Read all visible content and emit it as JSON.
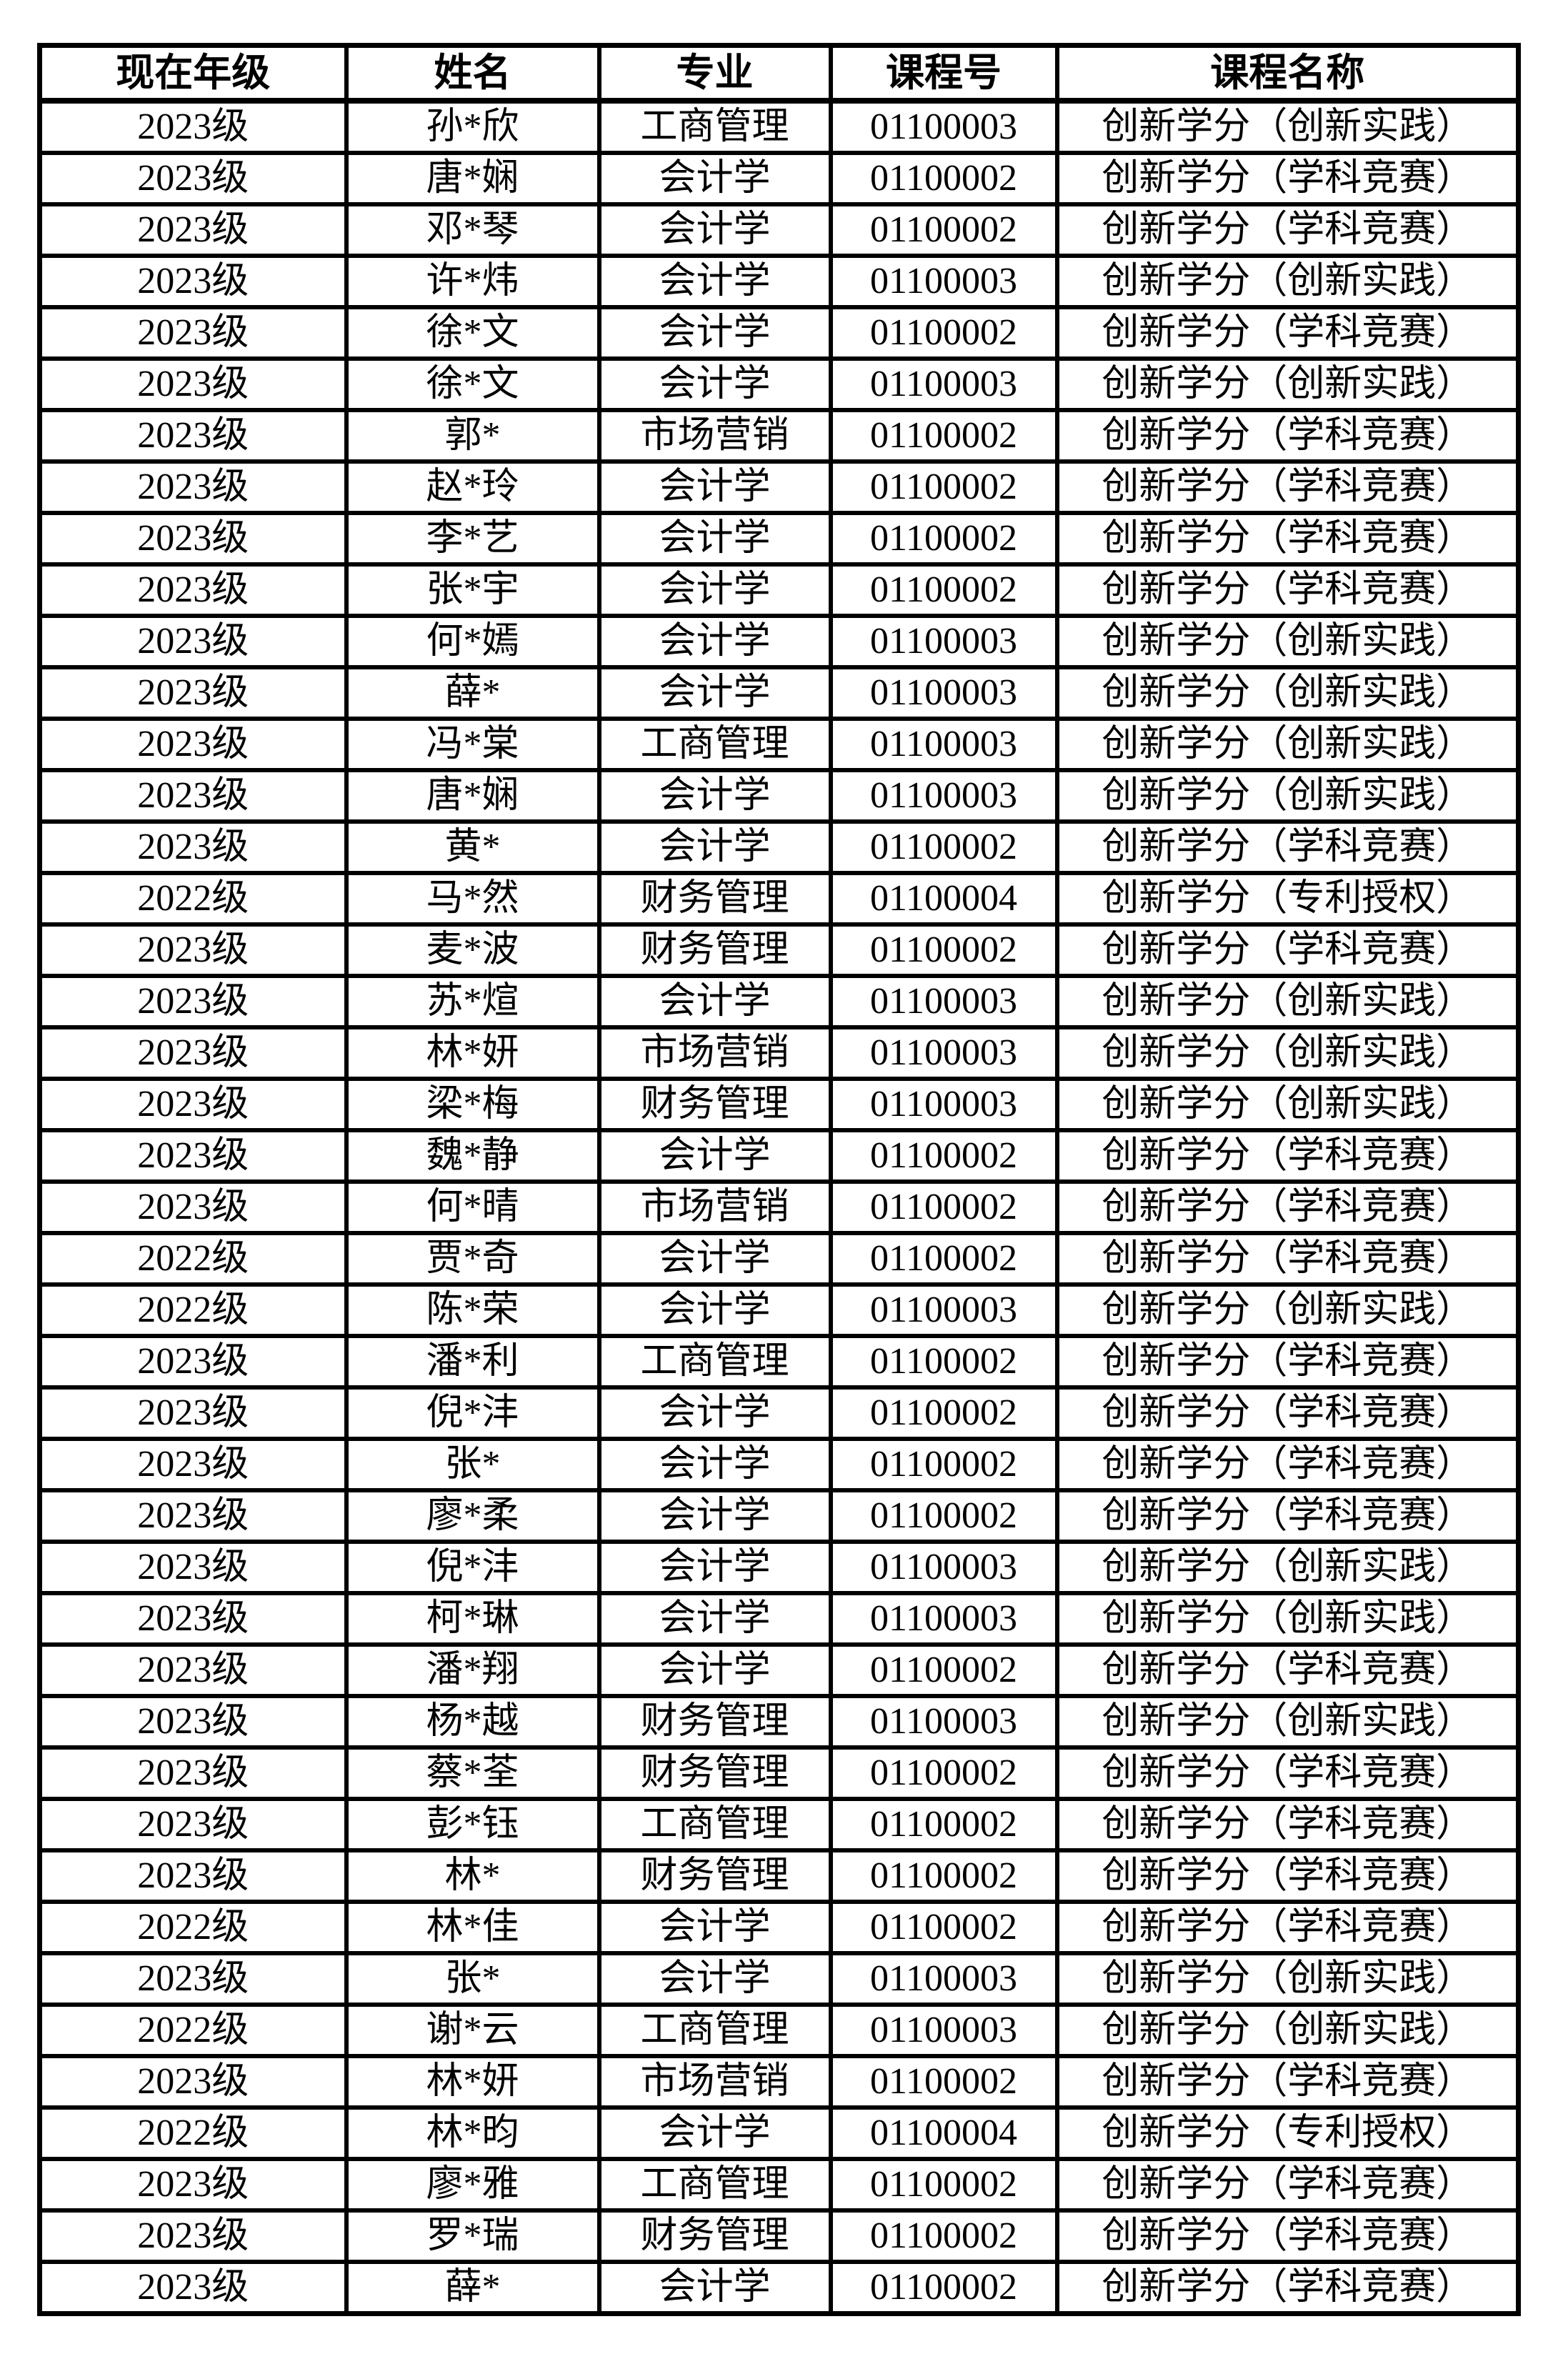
{
  "table": {
    "columns": [
      {
        "key": "grade",
        "label": "现在年级"
      },
      {
        "key": "name",
        "label": "姓名"
      },
      {
        "key": "major",
        "label": "专业"
      },
      {
        "key": "course-no",
        "label": "课程号"
      },
      {
        "key": "course-name",
        "label": "课程名称"
      }
    ],
    "rows": [
      [
        "2023级",
        "孙*欣",
        "工商管理",
        "01100003",
        "创新学分（创新实践）"
      ],
      [
        "2023级",
        "唐*娴",
        "会计学",
        "01100002",
        "创新学分（学科竞赛）"
      ],
      [
        "2023级",
        "邓*琴",
        "会计学",
        "01100002",
        "创新学分（学科竞赛）"
      ],
      [
        "2023级",
        "许*炜",
        "会计学",
        "01100003",
        "创新学分（创新实践）"
      ],
      [
        "2023级",
        "徐*文",
        "会计学",
        "01100002",
        "创新学分（学科竞赛）"
      ],
      [
        "2023级",
        "徐*文",
        "会计学",
        "01100003",
        "创新学分（创新实践）"
      ],
      [
        "2023级",
        "郭*",
        "市场营销",
        "01100002",
        "创新学分（学科竞赛）"
      ],
      [
        "2023级",
        "赵*玲",
        "会计学",
        "01100002",
        "创新学分（学科竞赛）"
      ],
      [
        "2023级",
        "李*艺",
        "会计学",
        "01100002",
        "创新学分（学科竞赛）"
      ],
      [
        "2023级",
        "张*宇",
        "会计学",
        "01100002",
        "创新学分（学科竞赛）"
      ],
      [
        "2023级",
        "何*嫣",
        "会计学",
        "01100003",
        "创新学分（创新实践）"
      ],
      [
        "2023级",
        "薛*",
        "会计学",
        "01100003",
        "创新学分（创新实践）"
      ],
      [
        "2023级",
        "冯*棠",
        "工商管理",
        "01100003",
        "创新学分（创新实践）"
      ],
      [
        "2023级",
        "唐*娴",
        "会计学",
        "01100003",
        "创新学分（创新实践）"
      ],
      [
        "2023级",
        "黄*",
        "会计学",
        "01100002",
        "创新学分（学科竞赛）"
      ],
      [
        "2022级",
        "马*然",
        "财务管理",
        "01100004",
        "创新学分（专利授权）"
      ],
      [
        "2023级",
        "麦*波",
        "财务管理",
        "01100002",
        "创新学分（学科竞赛）"
      ],
      [
        "2023级",
        "苏*煊",
        "会计学",
        "01100003",
        "创新学分（创新实践）"
      ],
      [
        "2023级",
        "林*妍",
        "市场营销",
        "01100003",
        "创新学分（创新实践）"
      ],
      [
        "2023级",
        "梁*梅",
        "财务管理",
        "01100003",
        "创新学分（创新实践）"
      ],
      [
        "2023级",
        "魏*静",
        "会计学",
        "01100002",
        "创新学分（学科竞赛）"
      ],
      [
        "2023级",
        "何*晴",
        "市场营销",
        "01100002",
        "创新学分（学科竞赛）"
      ],
      [
        "2022级",
        "贾*奇",
        "会计学",
        "01100002",
        "创新学分（学科竞赛）"
      ],
      [
        "2022级",
        "陈*荣",
        "会计学",
        "01100003",
        "创新学分（创新实践）"
      ],
      [
        "2023级",
        "潘*利",
        "工商管理",
        "01100002",
        "创新学分（学科竞赛）"
      ],
      [
        "2023级",
        "倪*沣",
        "会计学",
        "01100002",
        "创新学分（学科竞赛）"
      ],
      [
        "2023级",
        "张*",
        "会计学",
        "01100002",
        "创新学分（学科竞赛）"
      ],
      [
        "2023级",
        "廖*柔",
        "会计学",
        "01100002",
        "创新学分（学科竞赛）"
      ],
      [
        "2023级",
        "倪*沣",
        "会计学",
        "01100003",
        "创新学分（创新实践）"
      ],
      [
        "2023级",
        "柯*琳",
        "会计学",
        "01100003",
        "创新学分（创新实践）"
      ],
      [
        "2023级",
        "潘*翔",
        "会计学",
        "01100002",
        "创新学分（学科竞赛）"
      ],
      [
        "2023级",
        "杨*越",
        "财务管理",
        "01100003",
        "创新学分（创新实践）"
      ],
      [
        "2023级",
        "蔡*荃",
        "财务管理",
        "01100002",
        "创新学分（学科竞赛）"
      ],
      [
        "2023级",
        "彭*钰",
        "工商管理",
        "01100002",
        "创新学分（学科竞赛）"
      ],
      [
        "2023级",
        "林*",
        "财务管理",
        "01100002",
        "创新学分（学科竞赛）"
      ],
      [
        "2022级",
        "林*佳",
        "会计学",
        "01100002",
        "创新学分（学科竞赛）"
      ],
      [
        "2023级",
        "张*",
        "会计学",
        "01100003",
        "创新学分（创新实践）"
      ],
      [
        "2022级",
        "谢*云",
        "工商管理",
        "01100003",
        "创新学分（创新实践）"
      ],
      [
        "2023级",
        "林*妍",
        "市场营销",
        "01100002",
        "创新学分（学科竞赛）"
      ],
      [
        "2022级",
        "林*昀",
        "会计学",
        "01100004",
        "创新学分（专利授权）"
      ],
      [
        "2023级",
        "廖*雅",
        "工商管理",
        "01100002",
        "创新学分（学科竞赛）"
      ],
      [
        "2023级",
        "罗*瑞",
        "财务管理",
        "01100002",
        "创新学分（学科竞赛）"
      ],
      [
        "2023级",
        "薛*",
        "会计学",
        "01100002",
        "创新学分（学科竞赛）"
      ]
    ],
    "colors": {
      "border": "#000000",
      "text": "#000000",
      "background": "#ffffff"
    }
  }
}
